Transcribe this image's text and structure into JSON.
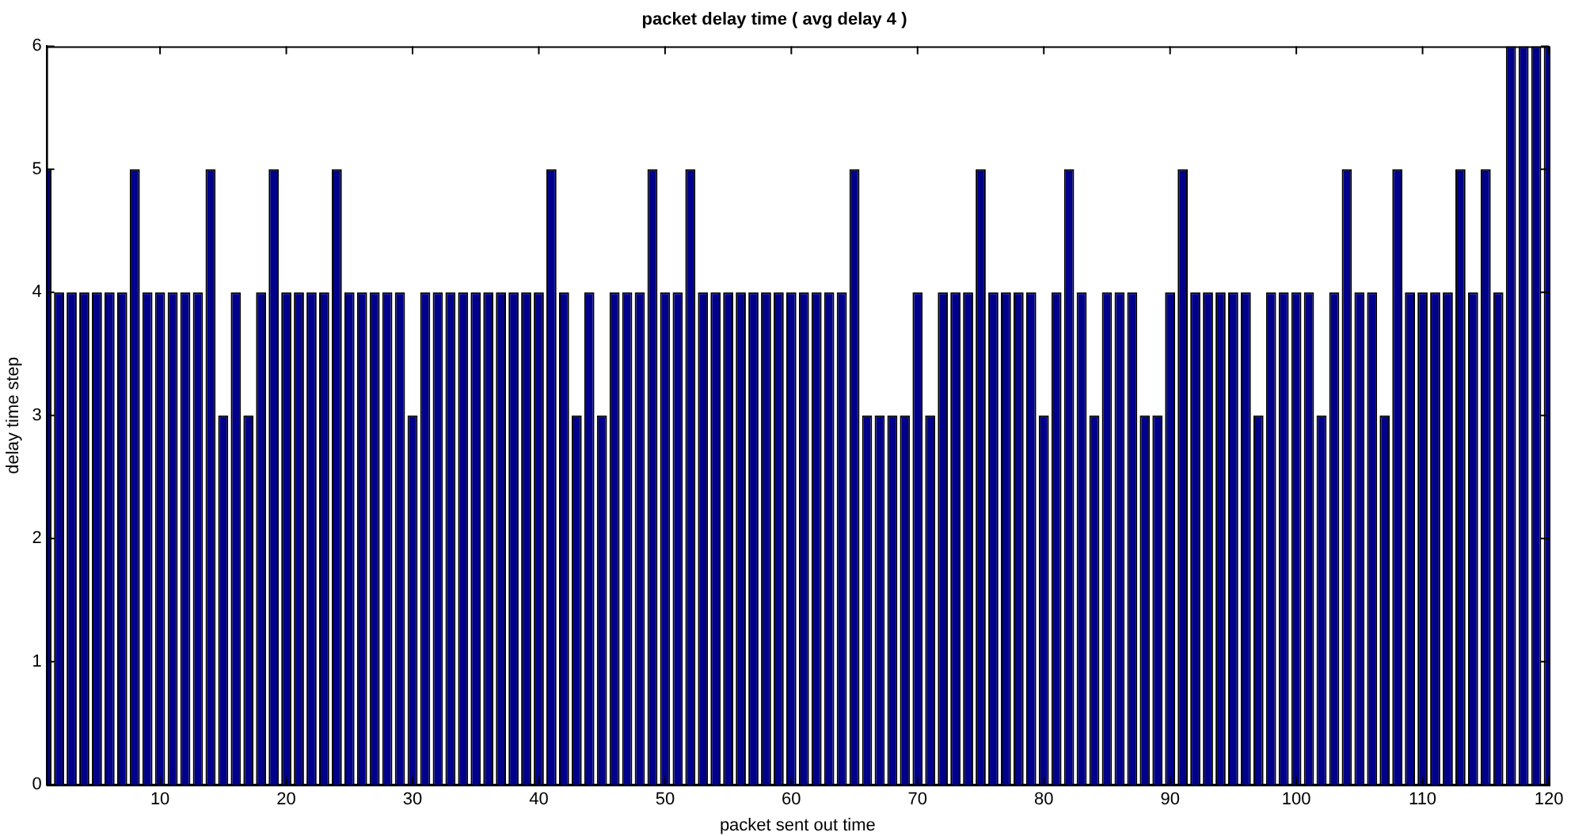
{
  "chart_data": {
    "type": "bar",
    "title": "packet delay time ( avg delay 4 )",
    "xlabel": "packet sent out time",
    "ylabel": "delay time step",
    "x": [
      1,
      2,
      3,
      4,
      5,
      6,
      7,
      8,
      9,
      10,
      11,
      12,
      13,
      14,
      15,
      16,
      17,
      18,
      19,
      20,
      21,
      22,
      23,
      24,
      25,
      26,
      27,
      28,
      29,
      30,
      31,
      32,
      33,
      34,
      35,
      36,
      37,
      38,
      39,
      40,
      41,
      42,
      43,
      44,
      45,
      46,
      47,
      48,
      49,
      50,
      51,
      52,
      53,
      54,
      55,
      56,
      57,
      58,
      59,
      60,
      61,
      62,
      63,
      64,
      65,
      66,
      67,
      68,
      69,
      70,
      71,
      72,
      73,
      74,
      75,
      76,
      77,
      78,
      79,
      80,
      81,
      82,
      83,
      84,
      85,
      86,
      87,
      88,
      89,
      90,
      91,
      92,
      93,
      94,
      95,
      96,
      97,
      98,
      99,
      100,
      101,
      102,
      103,
      104,
      105,
      106,
      107,
      108,
      109,
      110,
      111,
      112,
      113,
      114,
      115,
      116,
      117,
      118,
      119,
      120
    ],
    "values": [
      5,
      4,
      4,
      4,
      4,
      4,
      4,
      5,
      4,
      4,
      4,
      4,
      4,
      5,
      3,
      4,
      3,
      4,
      5,
      4,
      4,
      4,
      4,
      5,
      4,
      4,
      4,
      4,
      4,
      3,
      4,
      4,
      4,
      4,
      4,
      4,
      4,
      4,
      4,
      4,
      5,
      4,
      3,
      4,
      3,
      4,
      4,
      4,
      5,
      4,
      4,
      5,
      4,
      4,
      4,
      4,
      4,
      4,
      4,
      4,
      4,
      4,
      4,
      4,
      5,
      3,
      3,
      3,
      3,
      4,
      3,
      4,
      4,
      4,
      5,
      4,
      4,
      4,
      4,
      3,
      4,
      5,
      4,
      3,
      4,
      4,
      4,
      3,
      3,
      4,
      5,
      4,
      4,
      4,
      4,
      4,
      3,
      4,
      4,
      4,
      4,
      3,
      4,
      5,
      4,
      4,
      3,
      5,
      4,
      4,
      4,
      4,
      5,
      4,
      5,
      4,
      6,
      6,
      6,
      6
    ],
    "color": "#00008b",
    "xlim": [
      1,
      120
    ],
    "xticks": [
      10,
      20,
      30,
      40,
      50,
      60,
      70,
      80,
      90,
      100,
      110,
      120
    ],
    "ylim": [
      0,
      6
    ],
    "yticks": [
      0,
      1,
      2,
      3,
      4,
      5,
      6
    ],
    "grid": false,
    "legend": false
  }
}
